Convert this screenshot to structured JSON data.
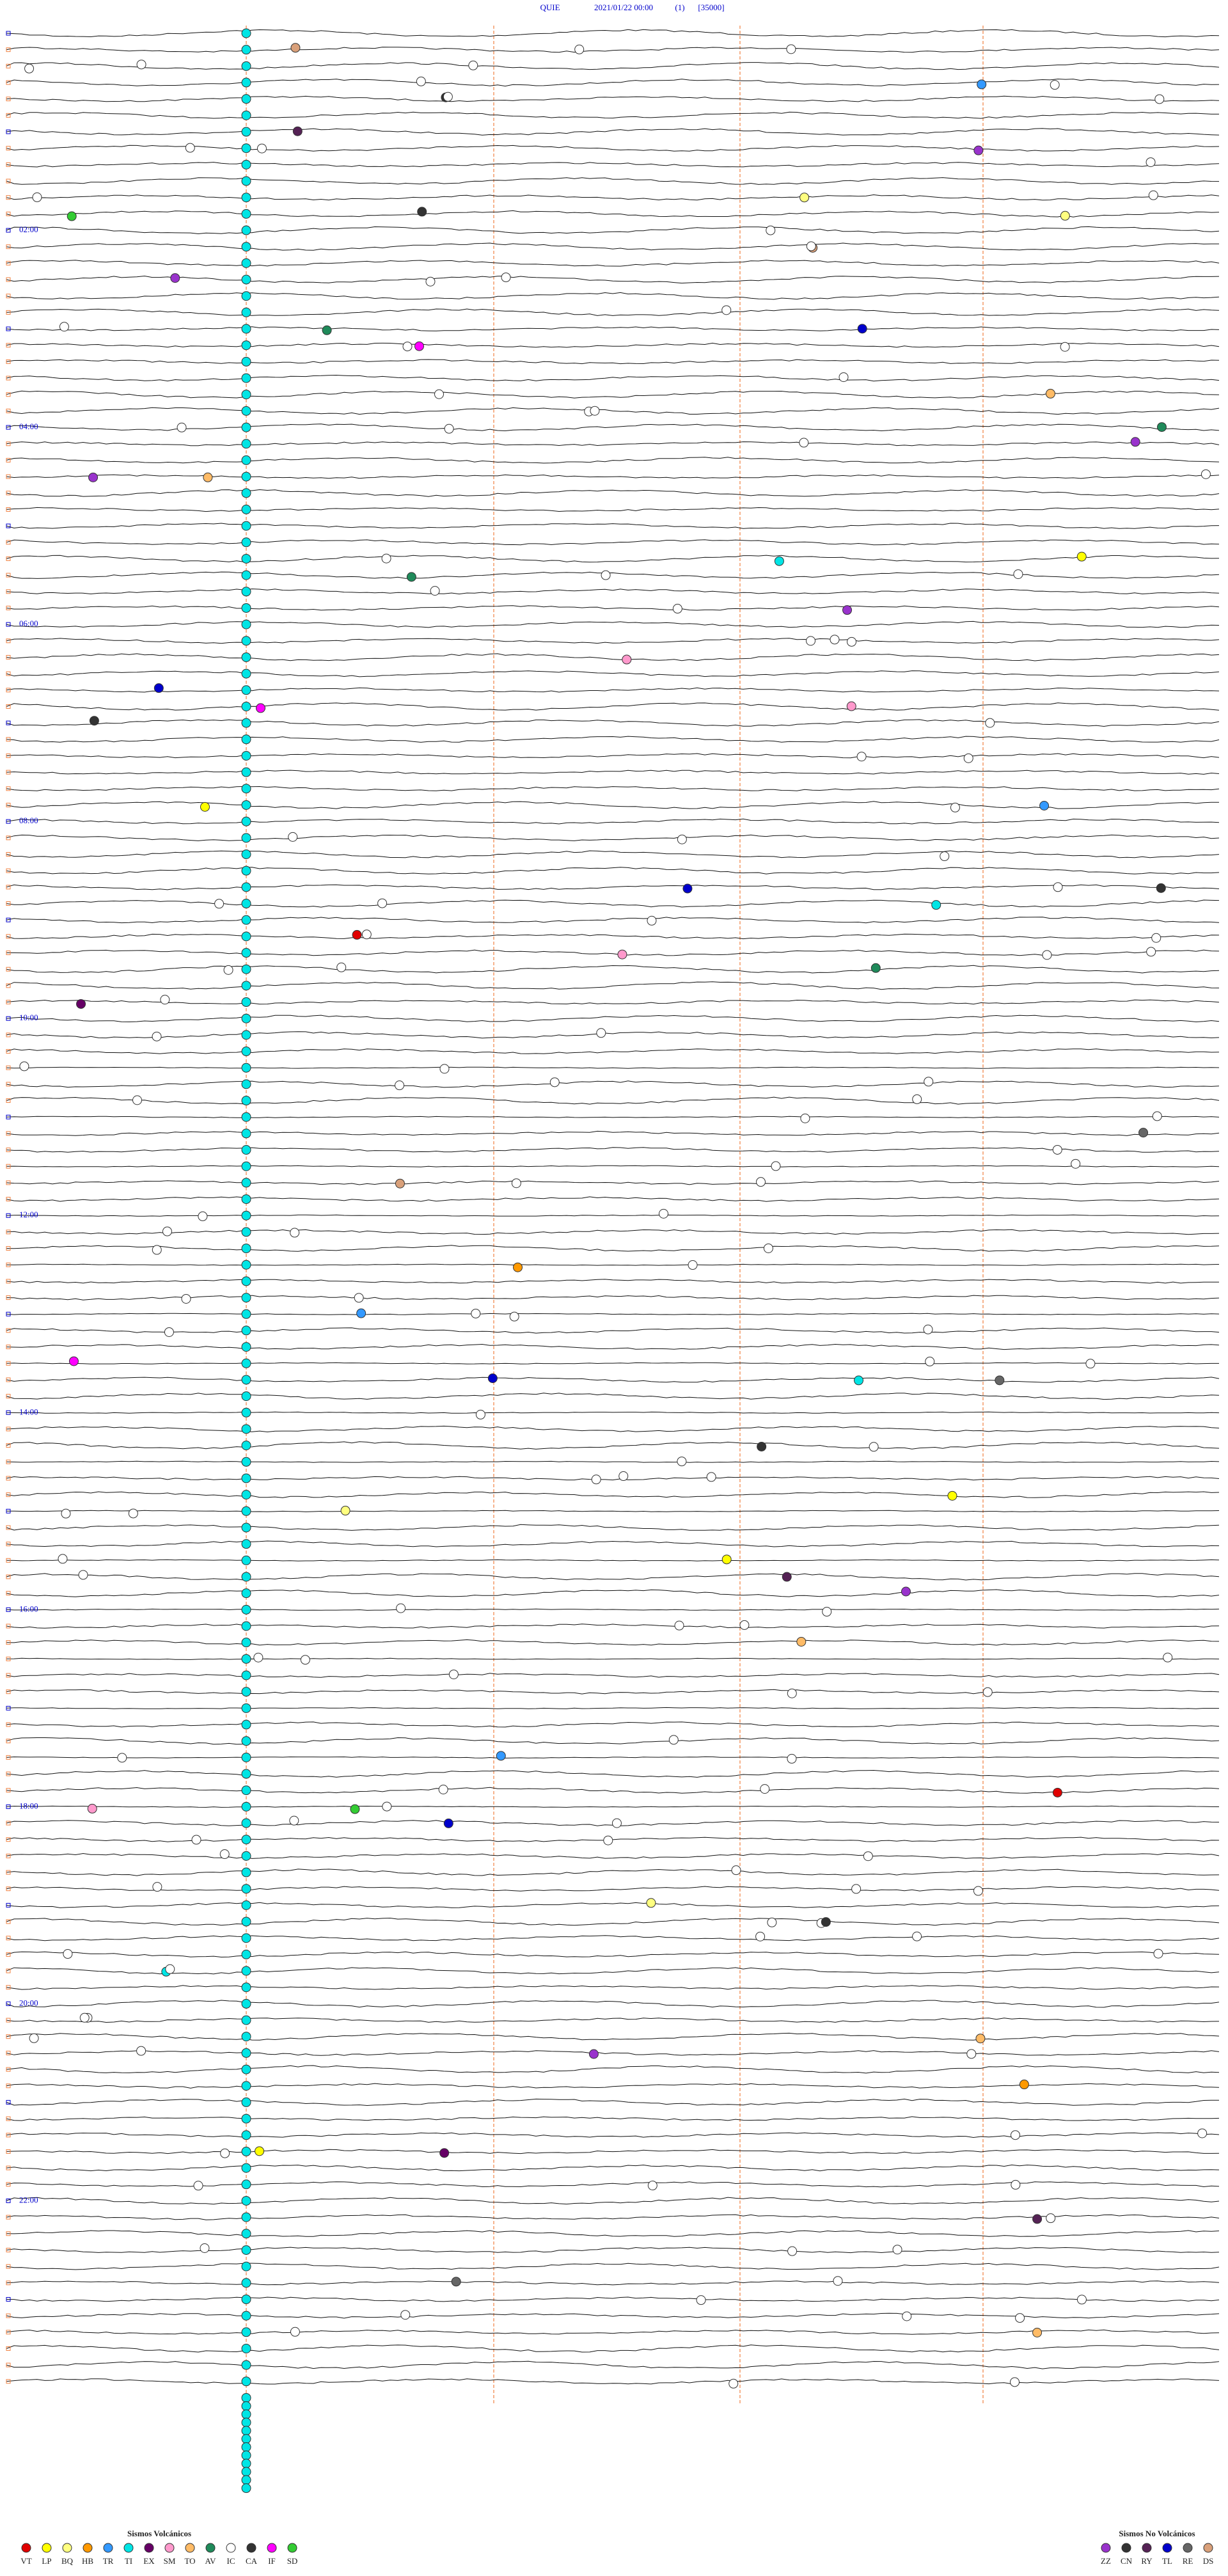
{
  "header": {
    "station": "QUIE",
    "date": "2021/01/22 00:00",
    "channel": "(1)",
    "scale": "[35000]"
  },
  "time_labels": [
    "02:00",
    "04:00",
    "06:00",
    "08:00",
    "10:00",
    "12:00",
    "14:00",
    "16:00",
    "18:00",
    "20:00",
    "22:00"
  ],
  "legend": {
    "volcanic": {
      "title": "Sismos Volcánicos",
      "items": [
        {
          "code": "VT",
          "color": "#e00000"
        },
        {
          "code": "LP",
          "color": "#ffff00"
        },
        {
          "code": "BQ",
          "color": "#ffff80"
        },
        {
          "code": "HB",
          "color": "#ff9900"
        },
        {
          "code": "TR",
          "color": "#3399ff"
        },
        {
          "code": "TI",
          "color": "#00e5e5"
        },
        {
          "code": "EX",
          "color": "#660066"
        },
        {
          "code": "SM",
          "color": "#ff99cc"
        },
        {
          "code": "TO",
          "color": "#ffbb66"
        },
        {
          "code": "AV",
          "color": "#1f8a5a"
        },
        {
          "code": "IC",
          "color": "#ffffff"
        },
        {
          "code": "CA",
          "color": "#333333"
        },
        {
          "code": "IF",
          "color": "#ff00ff"
        },
        {
          "code": "SD",
          "color": "#33cc33"
        }
      ]
    },
    "non_volcanic": {
      "title": "Sismos No Volcánicos",
      "items": [
        {
          "code": "ZZ",
          "color": "#9933cc"
        },
        {
          "code": "CN",
          "color": "#333333"
        },
        {
          "code": "RY",
          "color": "#552255"
        },
        {
          "code": "TL",
          "color": "#0000cc"
        },
        {
          "code": "RE",
          "color": "#666666"
        },
        {
          "code": "DS",
          "color": "#d9a07a"
        }
      ]
    }
  }
}
